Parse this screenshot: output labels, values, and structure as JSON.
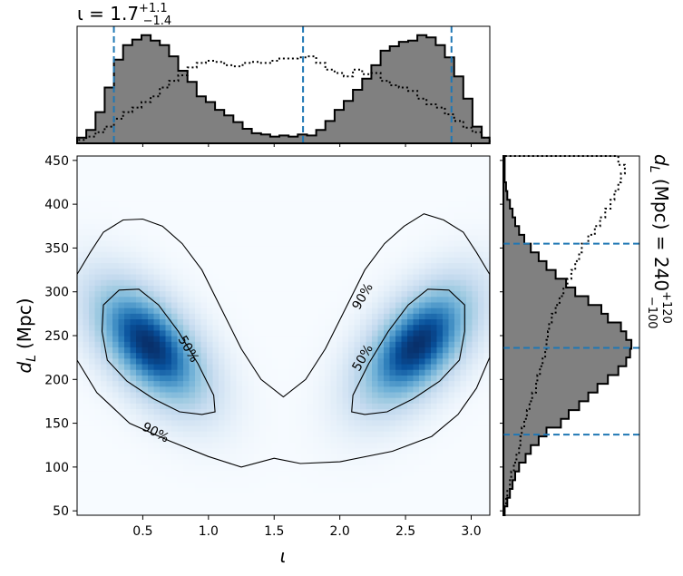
{
  "chart_data": [
    {
      "panel": "joint",
      "type": "heatmap",
      "x_param": "inclination",
      "y_param": "luminosity_distance",
      "xlabel": "ι",
      "ylabel_main": "d",
      "ylabel_sub": "L",
      "ylabel_unit": "(Mpc)",
      "xlim": [
        0.0,
        3.1416
      ],
      "ylim": [
        45,
        455
      ],
      "x_ticks": [
        0.5,
        1.0,
        1.5,
        2.0,
        2.5,
        3.0
      ],
      "x_tick_labels": [
        "0.5",
        "1.0",
        "1.5",
        "2.0",
        "2.5",
        "3.0"
      ],
      "y_ticks": [
        50,
        100,
        150,
        200,
        250,
        300,
        350,
        400,
        450
      ],
      "y_tick_labels": [
        "50",
        "100",
        "150",
        "200",
        "250",
        "300",
        "350",
        "400",
        "450"
      ],
      "colormap": "Blues",
      "density_modes": [
        {
          "x": 0.55,
          "y": 240,
          "sx": 0.28,
          "sy": 45,
          "rho": -0.55,
          "weight": 1.0
        },
        {
          "x": 2.59,
          "y": 240,
          "sx": 0.28,
          "sy": 45,
          "rho": 0.55,
          "weight": 1.0
        }
      ],
      "contours": [
        {
          "label": "90%",
          "points": [
            [
              0.0,
              320
            ],
            [
              0.1,
              345
            ],
            [
              0.2,
              368
            ],
            [
              0.35,
              382
            ],
            [
              0.5,
              383
            ],
            [
              0.65,
              375
            ],
            [
              0.8,
              355
            ],
            [
              0.95,
              325
            ],
            [
              1.1,
              280
            ],
            [
              1.25,
              235
            ],
            [
              1.4,
              200
            ],
            [
              1.57,
              180
            ],
            [
              1.74,
              200
            ],
            [
              1.89,
              235
            ],
            [
              2.04,
              280
            ],
            [
              2.19,
              325
            ],
            [
              2.34,
              355
            ],
            [
              2.49,
              375
            ],
            [
              2.64,
              389
            ],
            [
              2.79,
              382
            ],
            [
              2.94,
              368
            ],
            [
              3.04,
              345
            ],
            [
              3.14,
              320
            ],
            [
              3.14,
              225
            ],
            [
              3.04,
              190
            ],
            [
              2.9,
              160
            ],
            [
              2.7,
              135
            ],
            [
              2.4,
              118
            ],
            [
              2.0,
              106
            ],
            [
              1.7,
              104
            ],
            [
              1.5,
              110
            ],
            [
              1.25,
              100
            ],
            [
              1.0,
              112
            ],
            [
              0.7,
              130
            ],
            [
              0.4,
              150
            ],
            [
              0.15,
              185
            ],
            [
              0.0,
              222
            ]
          ],
          "label_positions": [
            {
              "x": 2.17,
              "y": 295,
              "angle": -60
            },
            {
              "x": 0.6,
              "y": 140,
              "angle": 28
            }
          ]
        },
        {
          "label": "50%",
          "points": [
            [
              0.2,
              285
            ],
            [
              0.32,
              302
            ],
            [
              0.47,
              303
            ],
            [
              0.62,
              285
            ],
            [
              0.77,
              255
            ],
            [
              0.92,
              218
            ],
            [
              1.04,
              182
            ],
            [
              1.05,
              163
            ],
            [
              0.95,
              160
            ],
            [
              0.78,
              163
            ],
            [
              0.58,
              178
            ],
            [
              0.38,
              198
            ],
            [
              0.23,
              222
            ],
            [
              0.19,
              255
            ]
          ],
          "label_positions": [
            {
              "x": 0.85,
              "y": 235,
              "angle": 60
            }
          ]
        },
        {
          "label": "50%",
          "points": [
            [
              2.95,
              285
            ],
            [
              2.83,
              302
            ],
            [
              2.67,
              303
            ],
            [
              2.52,
              285
            ],
            [
              2.37,
              255
            ],
            [
              2.22,
              218
            ],
            [
              2.1,
              182
            ],
            [
              2.09,
              163
            ],
            [
              2.19,
              160
            ],
            [
              2.36,
              163
            ],
            [
              2.56,
              178
            ],
            [
              2.76,
              198
            ],
            [
              2.91,
              222
            ],
            [
              2.95,
              255
            ]
          ],
          "label_positions": [
            {
              "x": 2.17,
              "y": 225,
              "angle": -60
            }
          ]
        }
      ]
    },
    {
      "panel": "inclination-marginal",
      "type": "histogram",
      "title_main": "ι = 1.7",
      "title_sup": "+1.1",
      "title_sub": "−1.4",
      "bins": [
        0.0,
        0.07,
        0.14,
        0.21,
        0.28,
        0.35,
        0.42,
        0.49,
        0.56,
        0.63,
        0.7,
        0.77,
        0.84,
        0.91,
        0.98,
        1.05,
        1.12,
        1.19,
        1.26,
        1.33,
        1.4,
        1.47,
        1.54,
        1.61,
        1.68,
        1.75,
        1.82,
        1.89,
        1.96,
        2.03,
        2.1,
        2.17,
        2.24,
        2.31,
        2.38,
        2.45,
        2.52,
        2.59,
        2.66,
        2.73,
        2.8,
        2.87,
        2.94,
        3.01,
        3.08,
        3.14
      ],
      "filled_counts": [
        0.05,
        0.12,
        0.28,
        0.5,
        0.75,
        0.88,
        0.93,
        0.97,
        0.92,
        0.88,
        0.78,
        0.65,
        0.55,
        0.42,
        0.37,
        0.3,
        0.25,
        0.19,
        0.13,
        0.09,
        0.08,
        0.06,
        0.07,
        0.06,
        0.08,
        0.07,
        0.12,
        0.2,
        0.3,
        0.38,
        0.48,
        0.58,
        0.7,
        0.83,
        0.87,
        0.91,
        0.92,
        0.97,
        0.95,
        0.88,
        0.77,
        0.6,
        0.4,
        0.15,
        0.05
      ],
      "dotted_counts": [
        0.03,
        0.06,
        0.1,
        0.15,
        0.22,
        0.28,
        0.32,
        0.37,
        0.42,
        0.5,
        0.56,
        0.61,
        0.68,
        0.72,
        0.74,
        0.73,
        0.7,
        0.69,
        0.72,
        0.73,
        0.72,
        0.74,
        0.76,
        0.76,
        0.77,
        0.78,
        0.72,
        0.66,
        0.63,
        0.6,
        0.66,
        0.62,
        0.63,
        0.56,
        0.52,
        0.5,
        0.47,
        0.4,
        0.35,
        0.32,
        0.26,
        0.2,
        0.14,
        0.1,
        0.05
      ],
      "quantile_lines": [
        0.28,
        1.72,
        2.85
      ],
      "quantile_color": "#1f77b4",
      "fill_color": "#808080"
    },
    {
      "panel": "distance-marginal",
      "type": "histogram",
      "orientation": "horizontal",
      "side_label_main": "d",
      "side_label_sub": "L",
      "side_label_rest": " (Mpc) = 240",
      "side_label_sup": "+120",
      "side_label_subscr": "−100",
      "bins": [
        45,
        55,
        65,
        75,
        85,
        95,
        105,
        115,
        125,
        135,
        145,
        155,
        165,
        175,
        185,
        195,
        205,
        215,
        225,
        235,
        245,
        255,
        265,
        275,
        285,
        295,
        305,
        315,
        325,
        335,
        345,
        355,
        365,
        375,
        385,
        395,
        405,
        415,
        425,
        435,
        445,
        455
      ],
      "filled_counts": [
        0.01,
        0.03,
        0.05,
        0.07,
        0.09,
        0.12,
        0.17,
        0.21,
        0.27,
        0.33,
        0.44,
        0.5,
        0.58,
        0.65,
        0.72,
        0.8,
        0.88,
        0.94,
        0.97,
        0.98,
        0.94,
        0.9,
        0.8,
        0.75,
        0.65,
        0.55,
        0.48,
        0.4,
        0.33,
        0.27,
        0.21,
        0.16,
        0.12,
        0.09,
        0.07,
        0.05,
        0.03,
        0.02,
        0.01,
        0.01,
        0.01
      ],
      "dotted_counts": [
        0.01,
        0.02,
        0.03,
        0.05,
        0.06,
        0.08,
        0.1,
        0.12,
        0.13,
        0.14,
        0.16,
        0.18,
        0.2,
        0.22,
        0.25,
        0.26,
        0.28,
        0.3,
        0.32,
        0.33,
        0.34,
        0.35,
        0.37,
        0.4,
        0.43,
        0.46,
        0.49,
        0.52,
        0.55,
        0.58,
        0.6,
        0.65,
        0.7,
        0.74,
        0.78,
        0.82,
        0.85,
        0.88,
        0.9,
        0.93,
        0.88
      ],
      "quantile_lines": [
        137,
        236,
        355
      ],
      "quantile_color": "#1f77b4",
      "fill_color": "#808080"
    }
  ]
}
